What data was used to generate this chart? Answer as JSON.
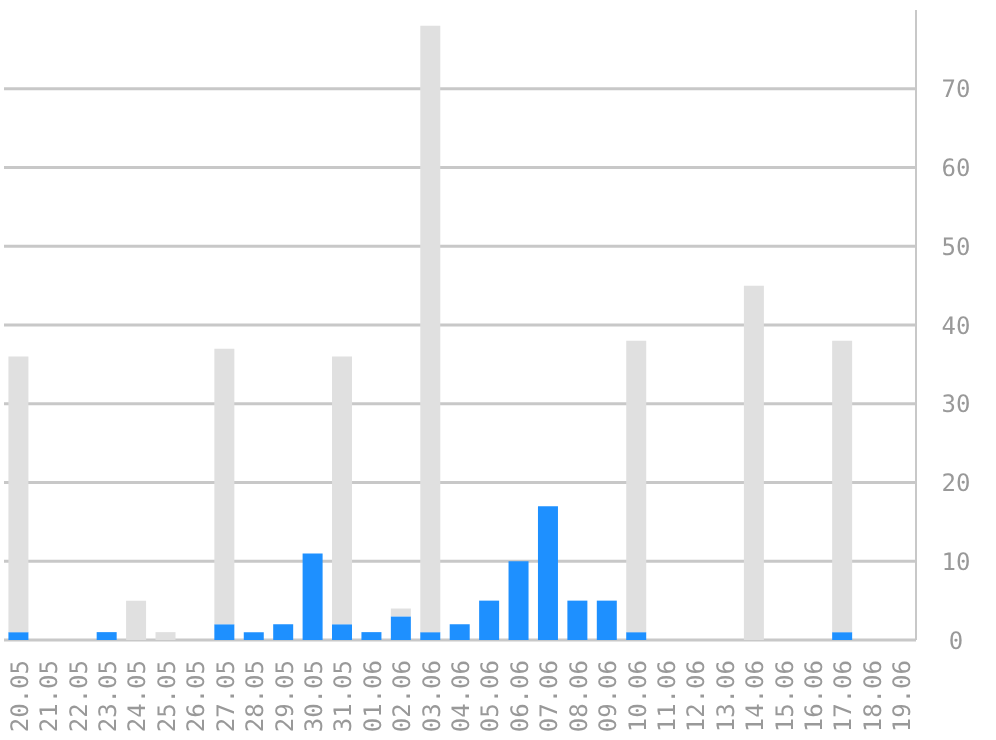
{
  "chart_data": {
    "type": "bar",
    "stacked": true,
    "categories": [
      "20.05",
      "21.05",
      "22.05",
      "23.05",
      "24.05",
      "25.05",
      "26.05",
      "27.05",
      "28.05",
      "29.05",
      "30.05",
      "31.05",
      "01.06",
      "02.06",
      "03.06",
      "04.06",
      "05.06",
      "06.06",
      "07.06",
      "08.06",
      "09.06",
      "10.06",
      "11.06",
      "12.06",
      "13.06",
      "14.06",
      "15.06",
      "16.06",
      "17.06",
      "18.06",
      "19.06"
    ],
    "series": [
      {
        "color": "#1e90ff",
        "values": [
          1,
          0,
          0,
          1,
          0,
          0,
          0,
          2,
          1,
          2,
          11,
          2,
          1,
          3,
          1,
          2,
          5,
          10,
          17,
          5,
          5,
          1,
          0,
          0,
          0,
          0,
          0,
          0,
          1,
          0,
          0
        ]
      },
      {
        "color": "#e0e0e0",
        "values": [
          35,
          0,
          0,
          0,
          5,
          1,
          0,
          35,
          0,
          0,
          0,
          34,
          0,
          1,
          77,
          0,
          0,
          0,
          0,
          0,
          0,
          37,
          0,
          0,
          0,
          45,
          0,
          0,
          37,
          0,
          0
        ]
      }
    ],
    "ylim": [
      0,
      80
    ],
    "yticks": [
      0,
      10,
      20,
      30,
      40,
      50,
      60,
      70
    ],
    "grid": "y",
    "legend": false
  }
}
